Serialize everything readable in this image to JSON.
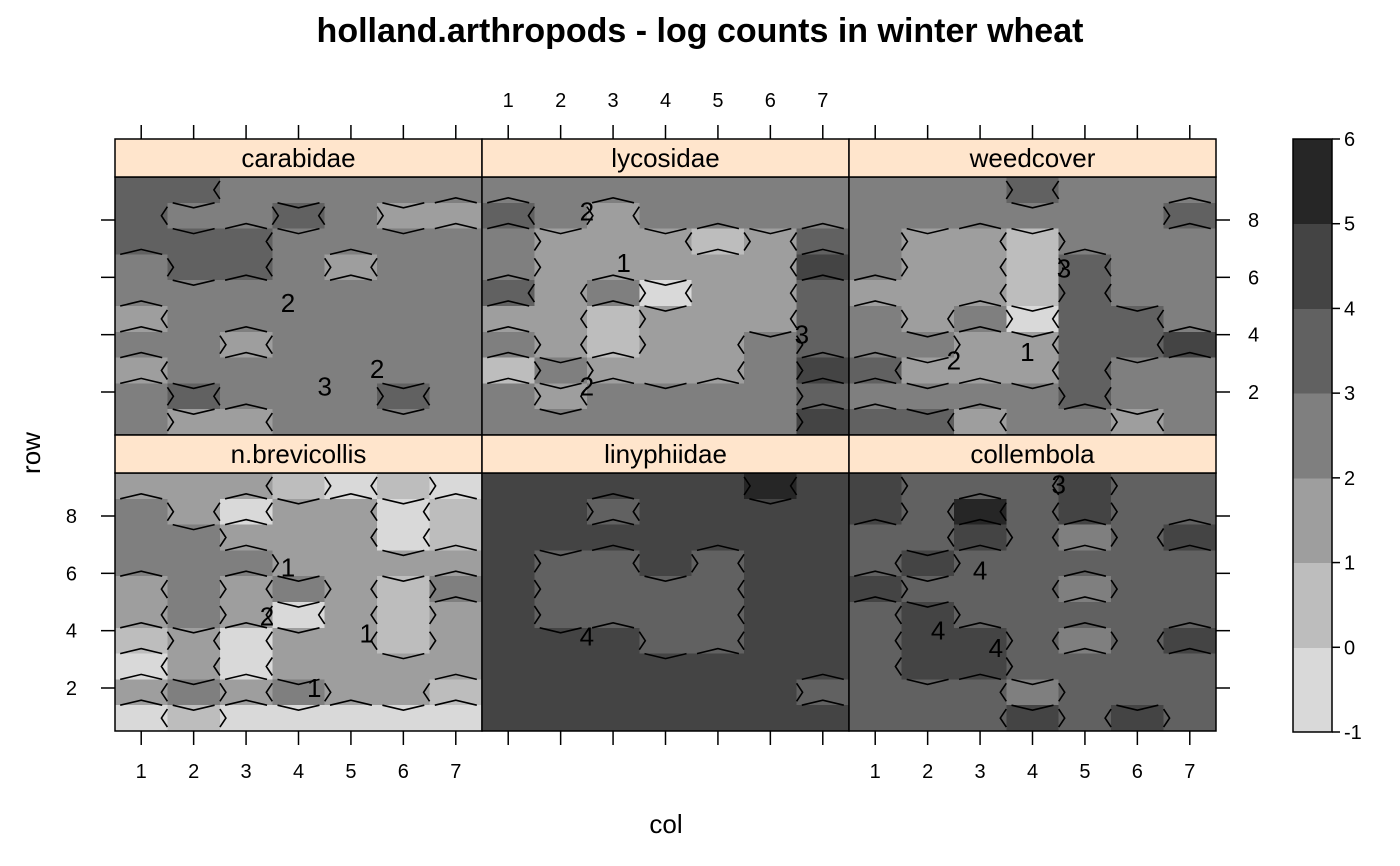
{
  "chart_data": {
    "type": "heatmap",
    "title": "holland.arthropods - log counts in winter wheat",
    "xlabel": "col",
    "ylabel": "row",
    "x_ticks": [
      1,
      2,
      3,
      4,
      5,
      6,
      7
    ],
    "y_ticks": [
      2,
      4,
      6,
      8
    ],
    "x_range": [
      0.5,
      7.5
    ],
    "y_range": [
      0.5,
      9.5
    ],
    "colorkey": {
      "breaks": [
        -1,
        0,
        1,
        2,
        3,
        4,
        5,
        6
      ],
      "labels": [
        "-1",
        "0",
        "1",
        "2",
        "3",
        "4",
        "5",
        "6"
      ],
      "colors": [
        "#d9d9d9",
        "#bdbdbd",
        "#9e9e9e",
        "#7f7f7f",
        "#616161",
        "#444444",
        "#262626"
      ]
    },
    "panels": [
      {
        "name": "carabidae",
        "grid": [
          [
            3.5,
            3.5,
            2.5,
            2.5,
            2.5,
            2.5,
            2.5
          ],
          [
            3.5,
            2.5,
            2.5,
            3.5,
            2.5,
            1.5,
            1.5
          ],
          [
            3.5,
            3.5,
            3.5,
            2.5,
            2.5,
            2.5,
            2.5
          ],
          [
            2.5,
            3.5,
            3.5,
            2.5,
            1.5,
            2.5,
            2.5
          ],
          [
            2.5,
            2.5,
            2.5,
            2.5,
            2.5,
            2.5,
            2.5
          ],
          [
            1.5,
            2.5,
            2.5,
            2.5,
            2.5,
            2.5,
            2.5
          ],
          [
            2.5,
            2.5,
            1.5,
            2.5,
            2.5,
            2.5,
            2.5
          ],
          [
            1.5,
            2.5,
            2.5,
            2.5,
            2.5,
            2.5,
            2.5
          ],
          [
            2.5,
            3.5,
            2.5,
            2.5,
            2.5,
            3.5,
            2.5
          ],
          [
            2.5,
            1.5,
            1.5,
            2.5,
            2.5,
            2.5,
            2.5
          ]
        ],
        "contour_labels": [
          {
            "text": "2",
            "x": 3.8,
            "y": 5.1
          },
          {
            "text": "3",
            "x": 4.5,
            "y": 2.2
          },
          {
            "text": "2",
            "x": 5.5,
            "y": 2.8
          }
        ]
      },
      {
        "name": "lycosidae",
        "grid": [
          [
            2.5,
            2.5,
            2.5,
            2.5,
            2.5,
            2.5,
            2.5
          ],
          [
            3.5,
            2.5,
            1.5,
            2.5,
            2.5,
            2.5,
            2.5
          ],
          [
            2.5,
            1.5,
            1.5,
            1.5,
            0.5,
            1.5,
            3.5
          ],
          [
            2.5,
            1.5,
            1.5,
            1.5,
            1.5,
            1.5,
            4.5
          ],
          [
            3.5,
            1.5,
            2.5,
            -0.5,
            1.5,
            1.5,
            3.5
          ],
          [
            1.5,
            1.5,
            0.5,
            1.5,
            1.5,
            1.5,
            3.5
          ],
          [
            2.5,
            1.5,
            0.5,
            1.5,
            1.5,
            2.5,
            3.5
          ],
          [
            0.5,
            2.5,
            1.5,
            1.5,
            1.5,
            2.5,
            4.5
          ],
          [
            2.5,
            1.5,
            2.5,
            2.5,
            2.5,
            2.5,
            3.5
          ],
          [
            2.5,
            2.5,
            2.5,
            2.5,
            2.5,
            2.5,
            4.5
          ]
        ],
        "contour_labels": [
          {
            "text": "2",
            "x": 2.5,
            "y": 2.2
          },
          {
            "text": "3",
            "x": 6.6,
            "y": 4.0
          },
          {
            "text": "1",
            "x": 3.2,
            "y": 6.5
          },
          {
            "text": "2",
            "x": 2.5,
            "y": 8.3
          }
        ]
      },
      {
        "name": "weedcover",
        "grid": [
          [
            2.5,
            2.5,
            2.5,
            3.5,
            2.5,
            2.5,
            2.5
          ],
          [
            2.5,
            2.5,
            2.5,
            2.5,
            2.5,
            2.5,
            3.5
          ],
          [
            2.5,
            1.5,
            1.5,
            0.5,
            2.5,
            2.5,
            2.5
          ],
          [
            2.5,
            1.5,
            1.5,
            0.5,
            3.5,
            2.5,
            2.5
          ],
          [
            1.5,
            1.5,
            1.5,
            0.5,
            3.5,
            2.5,
            2.5
          ],
          [
            2.5,
            1.5,
            2.5,
            -0.5,
            3.5,
            3.5,
            2.5
          ],
          [
            2.5,
            2.5,
            1.5,
            1.5,
            3.5,
            3.5,
            4.5
          ],
          [
            3.5,
            1.5,
            1.5,
            1.5,
            3.5,
            2.5,
            2.5
          ],
          [
            2.5,
            2.5,
            2.5,
            2.5,
            3.5,
            2.5,
            2.5
          ],
          [
            3.5,
            3.5,
            1.5,
            2.5,
            2.5,
            1.5,
            2.5
          ]
        ],
        "contour_labels": [
          {
            "text": "2",
            "x": 2.5,
            "y": 3.1
          },
          {
            "text": "1",
            "x": 3.9,
            "y": 3.4
          },
          {
            "text": "3",
            "x": 4.6,
            "y": 6.3
          }
        ]
      },
      {
        "name": "n.brevicollis",
        "grid": [
          [
            1.5,
            1.5,
            1.5,
            0.5,
            -0.5,
            0.5,
            -0.5
          ],
          [
            2.5,
            1.5,
            -0.5,
            1.5,
            1.5,
            -0.5,
            0.5
          ],
          [
            2.5,
            2.5,
            1.5,
            1.5,
            1.5,
            -1.0,
            0.5
          ],
          [
            2.5,
            2.5,
            2.5,
            1.5,
            1.5,
            1.5,
            1.5
          ],
          [
            1.5,
            2.5,
            1.5,
            2.5,
            1.5,
            0.5,
            2.5
          ],
          [
            1.5,
            2.5,
            1.5,
            -0.5,
            1.5,
            0.5,
            1.5
          ],
          [
            0.5,
            1.5,
            -0.5,
            1.5,
            1.5,
            0.5,
            1.5
          ],
          [
            -1.0,
            1.5,
            -1.0,
            1.5,
            1.5,
            1.5,
            1.5
          ],
          [
            1.5,
            2.5,
            1.5,
            2.5,
            1.5,
            1.5,
            0.5
          ],
          [
            -1.0,
            0.5,
            -1.0,
            -0.5,
            -1.0,
            -1.0,
            -1.0
          ]
        ],
        "contour_labels": [
          {
            "text": "1",
            "x": 4.3,
            "y": 2.0
          },
          {
            "text": "1",
            "x": 5.3,
            "y": 3.9
          },
          {
            "text": "2",
            "x": 3.4,
            "y": 4.5
          },
          {
            "text": "1",
            "x": 3.8,
            "y": 6.2
          }
        ]
      },
      {
        "name": "linyphiidae",
        "grid": [
          [
            4.5,
            4.5,
            4.5,
            4.5,
            4.5,
            5.5,
            4.5
          ],
          [
            4.5,
            4.5,
            3.5,
            4.5,
            4.5,
            4.5,
            4.5
          ],
          [
            4.5,
            4.5,
            4.5,
            4.5,
            4.5,
            4.5,
            4.5
          ],
          [
            4.5,
            3.5,
            3.5,
            4.5,
            3.5,
            4.5,
            4.5
          ],
          [
            4.5,
            3.5,
            3.5,
            3.5,
            3.5,
            4.5,
            4.5
          ],
          [
            4.5,
            3.5,
            3.5,
            3.5,
            3.5,
            4.5,
            4.5
          ],
          [
            4.5,
            4.5,
            4.5,
            3.5,
            3.5,
            4.5,
            4.5
          ],
          [
            4.5,
            4.5,
            4.5,
            4.5,
            4.5,
            4.5,
            4.5
          ],
          [
            4.5,
            4.5,
            4.5,
            4.5,
            4.5,
            4.5,
            3.5
          ],
          [
            4.5,
            4.5,
            4.5,
            4.5,
            4.5,
            4.5,
            4.5
          ]
        ],
        "contour_labels": [
          {
            "text": "4",
            "x": 2.5,
            "y": 3.8
          }
        ]
      },
      {
        "name": "collembola",
        "grid": [
          [
            4.5,
            3.5,
            3.5,
            3.5,
            4.5,
            3.5,
            3.5
          ],
          [
            4.5,
            3.5,
            5.5,
            3.5,
            4.5,
            3.5,
            3.5
          ],
          [
            3.5,
            3.5,
            4.5,
            3.5,
            2.5,
            3.5,
            4.5
          ],
          [
            3.5,
            4.5,
            3.5,
            3.5,
            3.5,
            3.5,
            3.5
          ],
          [
            4.5,
            3.5,
            3.5,
            3.5,
            2.5,
            3.5,
            3.5
          ],
          [
            3.5,
            4.5,
            3.5,
            3.5,
            3.5,
            3.5,
            3.5
          ],
          [
            3.5,
            4.5,
            4.5,
            3.5,
            2.5,
            3.5,
            4.5
          ],
          [
            3.5,
            4.5,
            4.5,
            3.5,
            3.5,
            3.5,
            3.5
          ],
          [
            3.5,
            3.5,
            3.5,
            2.5,
            3.5,
            3.5,
            3.5
          ],
          [
            3.5,
            3.5,
            3.5,
            4.5,
            3.5,
            4.5,
            3.5
          ]
        ],
        "contour_labels": [
          {
            "text": "4",
            "x": 2.2,
            "y": 4.0
          },
          {
            "text": "4",
            "x": 3.3,
            "y": 3.4
          },
          {
            "text": "4",
            "x": 3.0,
            "y": 6.1
          },
          {
            "text": "3",
            "x": 4.5,
            "y": 9.1
          }
        ]
      }
    ]
  }
}
